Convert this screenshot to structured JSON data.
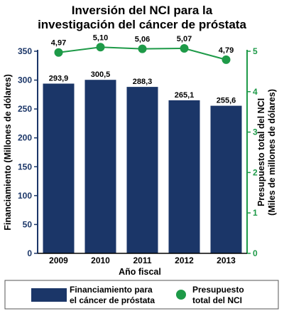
{
  "colors": {
    "bar": "#1b3668",
    "line": "#1e9a48",
    "axis_left": "#1b3668",
    "axis_right": "#1e9a48"
  },
  "chart_data": {
    "type": "bar",
    "title": "Inversión del NCI para la investigación del cáncer de próstata",
    "title_lines": [
      "Inversión del NCI para la",
      "investigación del cáncer de próstata"
    ],
    "xlabel": "Año fiscal",
    "ylabel": "Financiamiento (Millones de dólares)",
    "y2label_lines": [
      "Presupuesto total del NCI",
      "(Miles de millones de dólares)"
    ],
    "categories": [
      "2009",
      "2010",
      "2011",
      "2012",
      "2013"
    ],
    "ylim": [
      0,
      350
    ],
    "y_ticks": [
      "0",
      "50",
      "100",
      "150",
      "200",
      "250",
      "300",
      "350"
    ],
    "y2lim": [
      0,
      5
    ],
    "y2_ticks": [
      "0",
      "1",
      "2",
      "3",
      "4",
      "5"
    ],
    "series": [
      {
        "name": "Financiamiento para el cáncer de próstata",
        "kind": "bar",
        "axis": "left",
        "values": [
          293.9,
          300.5,
          288.3,
          265.1,
          255.6
        ],
        "labels": [
          "293,9",
          "300,5",
          "288,3",
          "265,1",
          "255,6"
        ]
      },
      {
        "name": "Presupuesto total del NCI",
        "kind": "line",
        "axis": "right",
        "values": [
          4.97,
          5.1,
          5.06,
          5.07,
          4.79
        ],
        "labels": [
          "4,97",
          "5,10",
          "5,06",
          "5,07",
          "4,79"
        ]
      }
    ],
    "legend": {
      "position": "bottom",
      "bar_lines": [
        "Financiamiento para",
        "el cáncer de próstata"
      ],
      "line_lines": [
        "Presupuesto",
        "total del NCI"
      ]
    },
    "grid": false
  }
}
